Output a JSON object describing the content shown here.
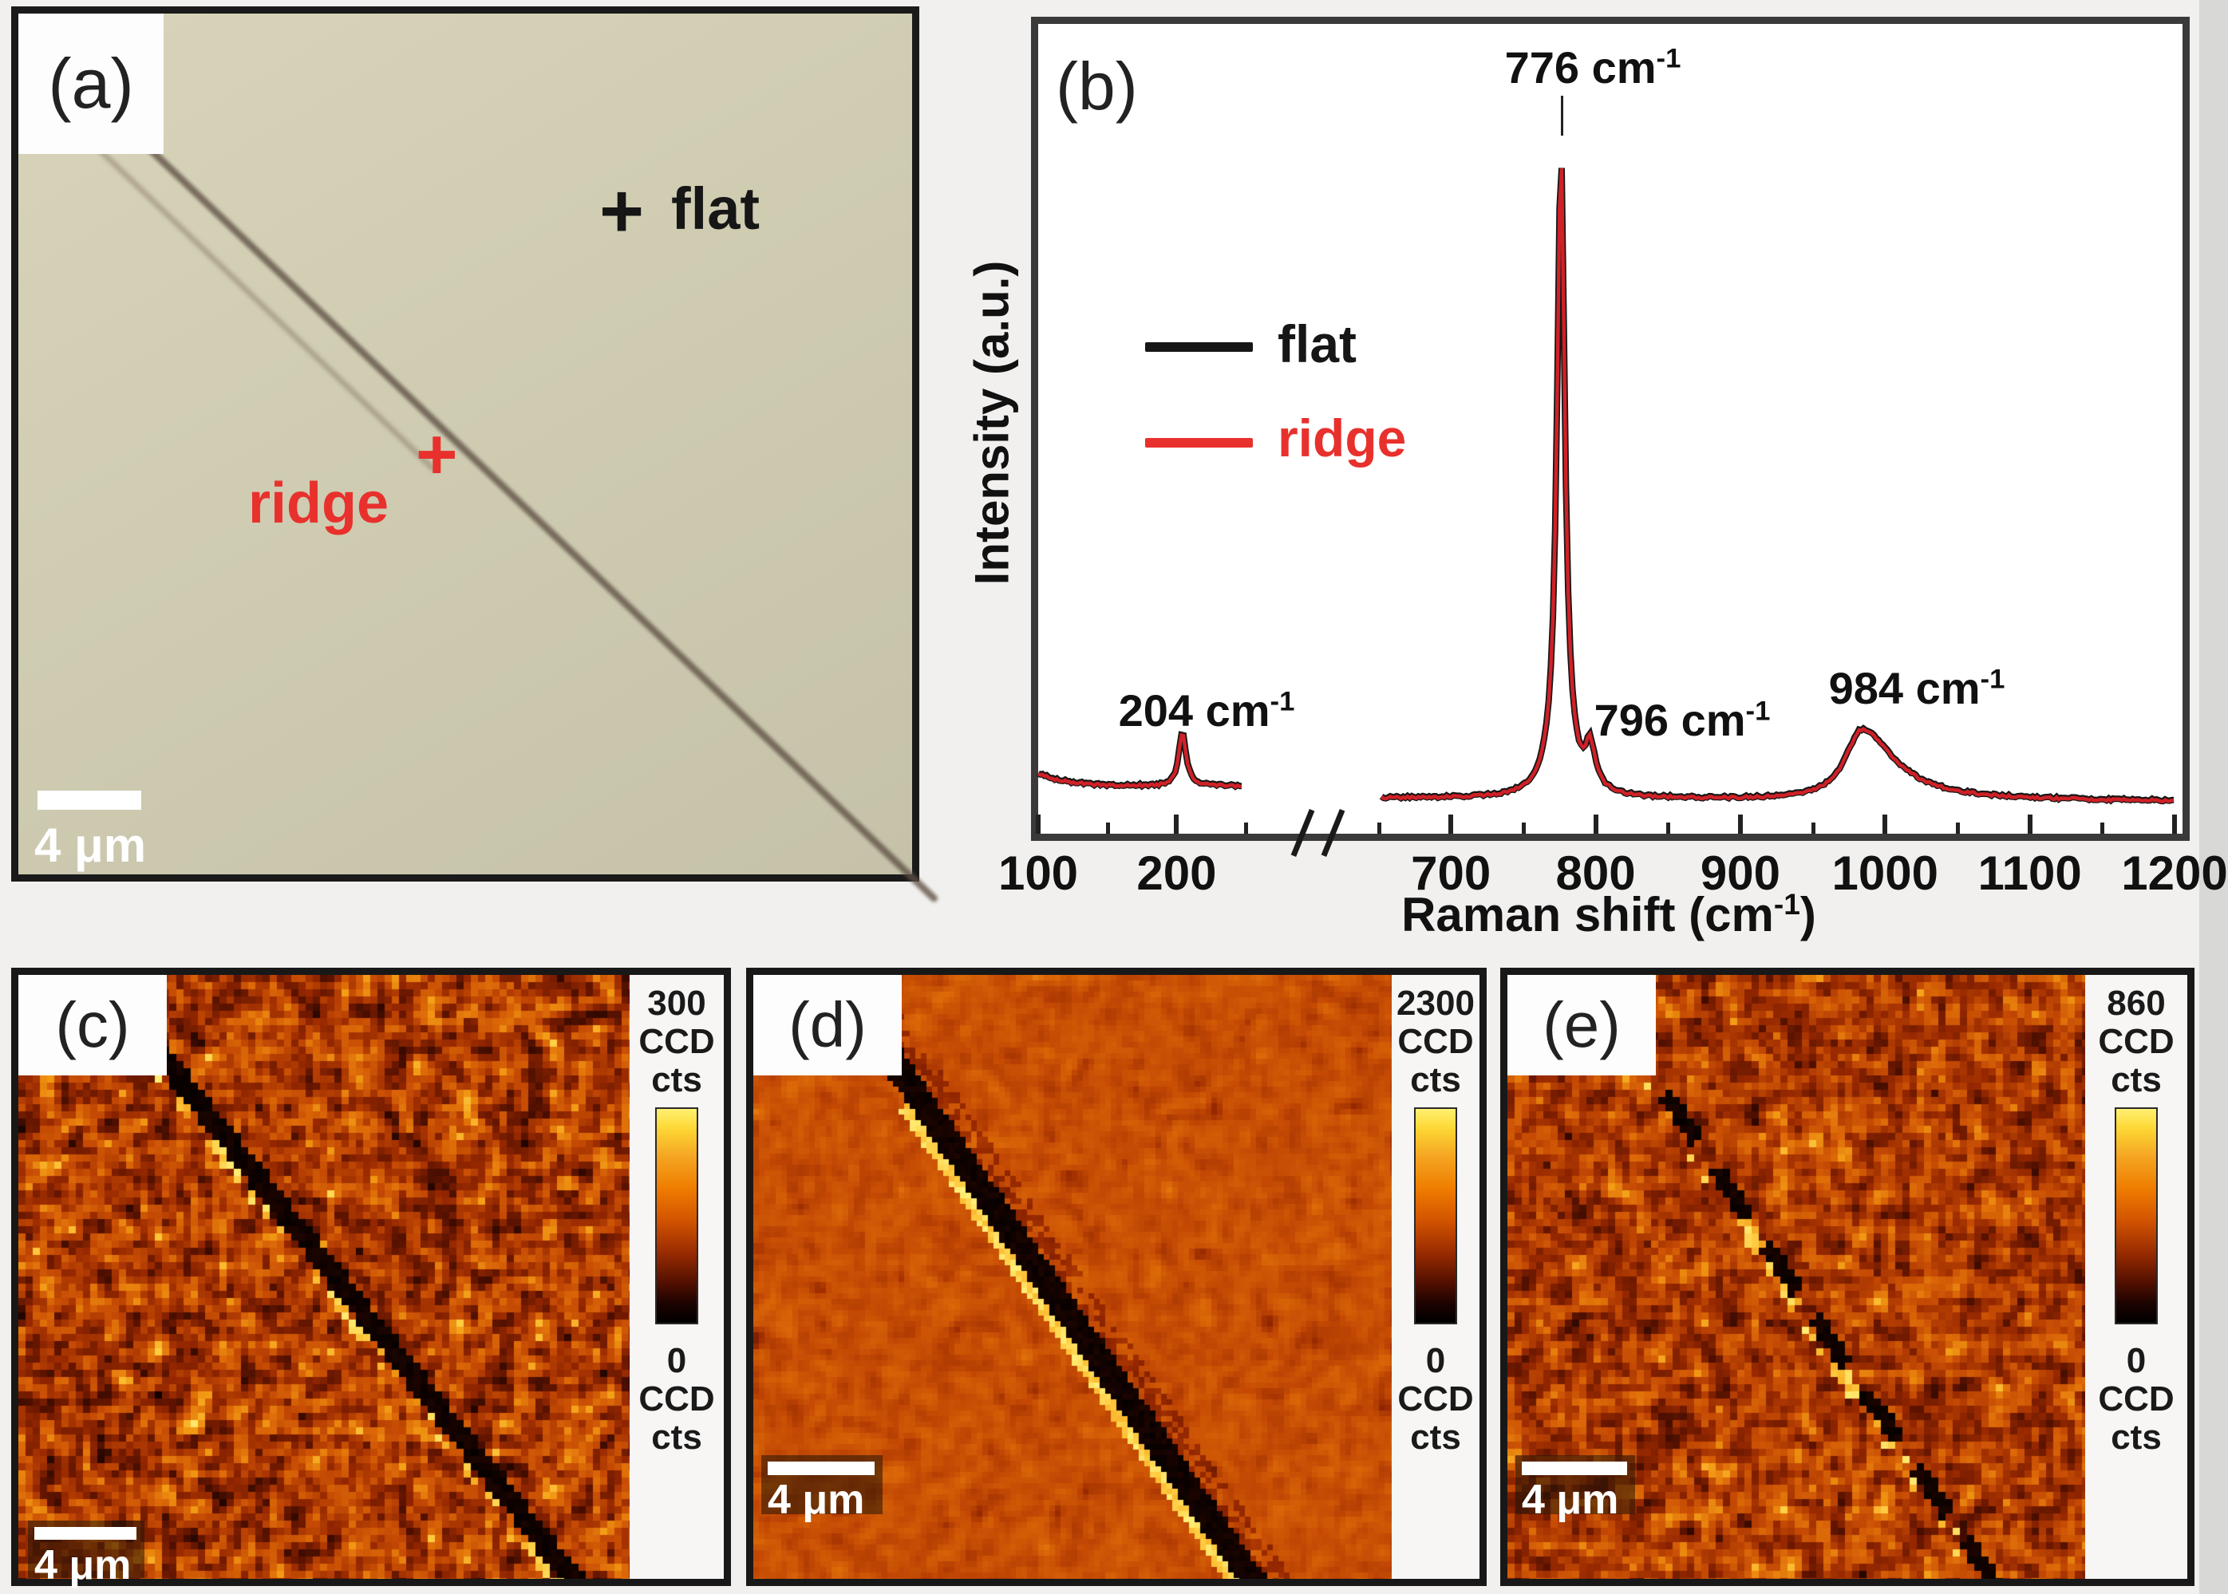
{
  "figure": {
    "background": "#f1f0ee"
  },
  "panel_a": {
    "label": "(a)",
    "flat_marker": "+",
    "flat_text": "flat",
    "ridge_text": "ridge",
    "ridge_marker": "+",
    "scalebar": "4 μm",
    "annotation_colors": {
      "flat": "#161616",
      "ridge": "#e8312d"
    }
  },
  "panel_b": {
    "label": "(b)",
    "ylabel": "Intensity (a.u.)",
    "xlabel": {
      "pre": "Raman shift (cm",
      "sup": "-1",
      "post": ")"
    },
    "legend": [
      {
        "label": "flat",
        "color": "#161616"
      },
      {
        "label": "ridge",
        "color": "#e8312d"
      }
    ],
    "peak_labels": [
      {
        "text": "204 cm",
        "sup": "-1"
      },
      {
        "text": "776 cm",
        "sup": "-1"
      },
      {
        "text": "796 cm",
        "sup": "-1"
      },
      {
        "text": "984 cm",
        "sup": "-1"
      }
    ]
  },
  "panels_map": {
    "c": {
      "label": "(c)",
      "colorbar": {
        "max": "300",
        "unit1": "CCD",
        "unit2": "cts",
        "min": "0"
      },
      "scalebar": "4 μm"
    },
    "d": {
      "label": "(d)",
      "colorbar": {
        "max": "2300",
        "unit1": "CCD",
        "unit2": "cts",
        "min": "0"
      },
      "scalebar": "4 μm"
    },
    "e": {
      "label": "(e)",
      "colorbar": {
        "max": "860",
        "unit1": "CCD",
        "unit2": "cts",
        "min": "0"
      },
      "scalebar": "4 μm"
    }
  },
  "chart_data": {
    "type": "line",
    "title": "",
    "xlabel": "Raman shift (cm-1)",
    "ylabel": "Intensity (a.u.)",
    "x_ticks": [
      100,
      200,
      700,
      800,
      900,
      1000,
      1100,
      1200
    ],
    "x_minor_ticks": [
      150,
      250,
      650,
      750,
      850,
      950,
      1050,
      1150
    ],
    "x_break": [
      250,
      650
    ],
    "x_segments": [
      {
        "from": 100,
        "to": 248,
        "f0": 0.0,
        "f1": 0.179
      },
      {
        "from": 652,
        "to": 1200,
        "f0": 0.3,
        "f1": 0.993
      }
    ],
    "baseline": {
      "left": 0.941,
      "right": 0.956
    },
    "legend_position": "upper-left",
    "grid": false,
    "series": [
      {
        "name": "flat",
        "color": "#161616"
      },
      {
        "name": "ridge",
        "color": "#cf2127"
      }
    ],
    "peaks": [
      {
        "center": 204,
        "height": 0.066,
        "hwhm_left": 3,
        "hwhm_right": 3.5,
        "label": "204 cm-1"
      },
      {
        "center": 776,
        "height": 0.75,
        "hwhm_left": 3.2,
        "hwhm_right": 3.2,
        "label": "776 cm-1"
      },
      {
        "center": 776,
        "height": 0.045,
        "hwhm_left": 10,
        "hwhm_right": 10,
        "label": null
      },
      {
        "center": 796,
        "height": 0.051,
        "hwhm_left": 3.5,
        "hwhm_right": 4.5,
        "label": "796 cm-1"
      },
      {
        "center": 984,
        "height": 0.087,
        "hwhm_left": 14,
        "hwhm_right": 27,
        "label": "984 cm-1"
      }
    ],
    "colorbars": [
      {
        "panel": "c",
        "max": 300,
        "min": 0,
        "unit": "CCD cts"
      },
      {
        "panel": "d",
        "max": 2300,
        "min": 0,
        "unit": "CCD cts"
      },
      {
        "panel": "e",
        "max": 860,
        "min": 0,
        "unit": "CCD cts"
      }
    ]
  }
}
